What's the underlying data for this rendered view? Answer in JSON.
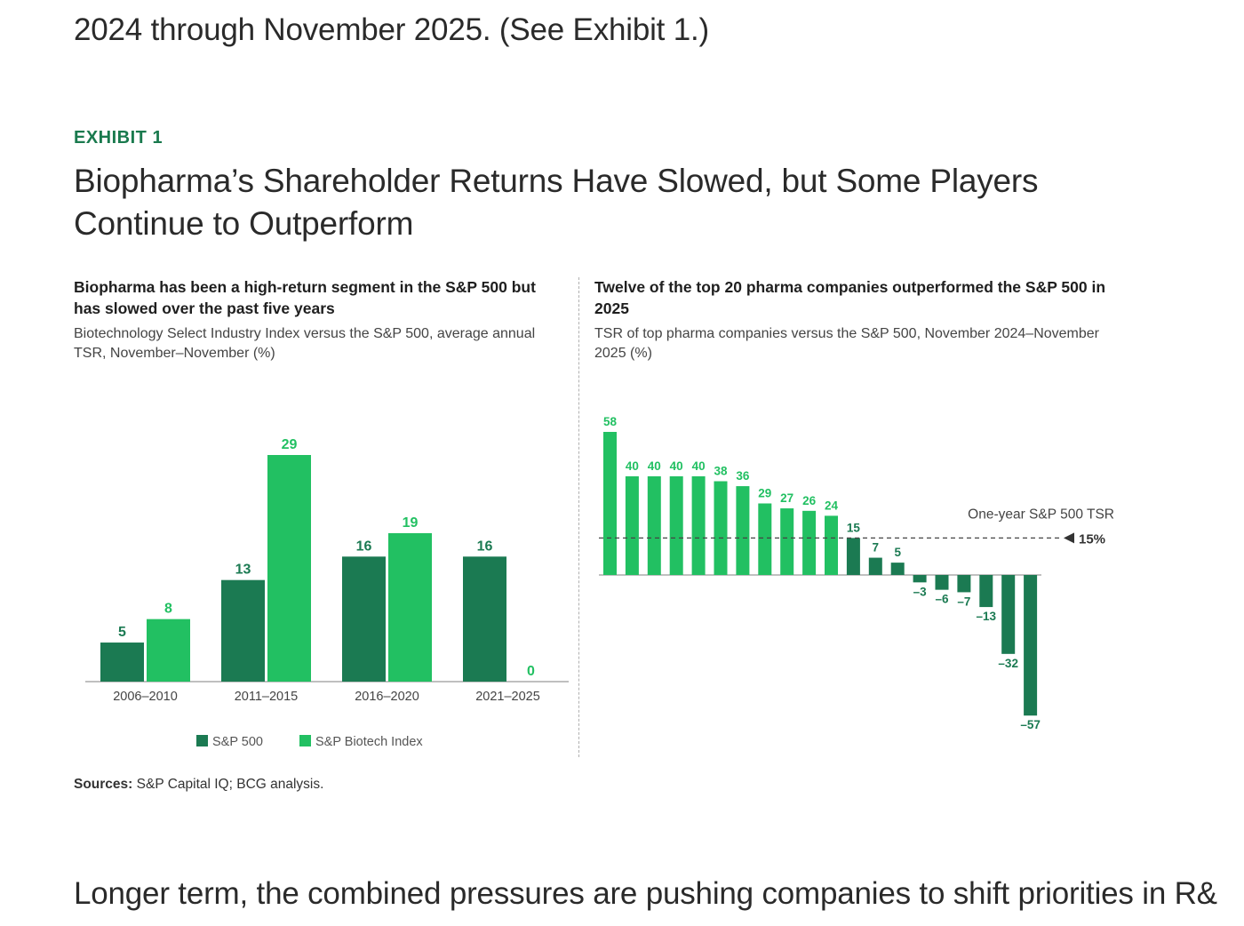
{
  "intro_text": "2024 through November 2025. (See Exhibit 1.)",
  "outro_text": "Longer term, the combined pressures are pushing companies to shift priorities in R&",
  "exhibit": {
    "label": "EXHIBIT 1",
    "title": "Biopharma’s Shareholder Returns Have Slowed, but Some Players Continue to Outperform"
  },
  "colors": {
    "dark_green": "#1b7a52",
    "light_green": "#22c062",
    "accent_text": "#1a7a4e"
  },
  "chart_data": [
    {
      "type": "bar",
      "title": "Biopharma has been a high-return segment in the S&P 500 but has slowed over the past five years",
      "subtitle": "Biotechnology Select Industry Index versus the S&P 500, average annual TSR, November–November (%)",
      "categories": [
        "2006–2010",
        "2011–2015",
        "2016–2020",
        "2021–2025"
      ],
      "series": [
        {
          "name": "S&P 500",
          "values": [
            5,
            13,
            16,
            16
          ],
          "color": "#1b7a52"
        },
        {
          "name": "S&P Biotech Index",
          "values": [
            8,
            29,
            19,
            0
          ],
          "color": "#22c062"
        }
      ],
      "ylim": [
        0,
        29
      ],
      "grid": false,
      "legend": "bottom-center"
    },
    {
      "type": "bar",
      "title": "Twelve of the top 20 pharma companies outperformed the S&P 500 in 2025",
      "subtitle": "TSR of top pharma companies versus the S&P 500, November 2024–November 2025 (%)",
      "values": [
        58,
        40,
        40,
        40,
        40,
        38,
        36,
        29,
        27,
        26,
        24,
        15,
        7,
        5,
        -3,
        -6,
        -7,
        -13,
        -32,
        -57
      ],
      "value_labels": [
        "58",
        "40",
        "40",
        "40",
        "40",
        "38",
        "36",
        "29",
        "27",
        "26",
        "24",
        "15",
        "7",
        "5",
        "–3",
        "–6",
        "–7",
        "–13",
        "–32",
        "–57"
      ],
      "color_above_benchmark": "#22c062",
      "color_below_benchmark": "#1b7a52",
      "ylim": [
        -57,
        58
      ],
      "reference_line": {
        "label": "One-year S&P 500 TSR",
        "value": 15,
        "value_label": "15%",
        "style": "dashed"
      },
      "grid": false
    }
  ],
  "sources": {
    "label": "Sources:",
    "text": "S&P Capital IQ; BCG analysis."
  }
}
